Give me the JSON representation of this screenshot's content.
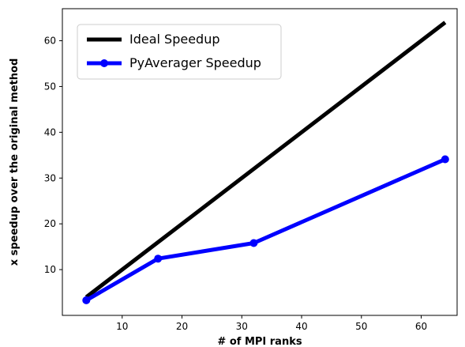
{
  "chart_data": {
    "type": "line",
    "title": "",
    "xlabel": "# of MPI ranks",
    "ylabel": "x speedup over the original method",
    "xlim": [
      0.0,
      66.0
    ],
    "ylim": [
      0.0,
      67.0
    ],
    "xticks": [
      10,
      20,
      30,
      40,
      50,
      60
    ],
    "yticks": [
      10,
      20,
      30,
      40,
      50,
      60
    ],
    "grid": false,
    "legend_position": "top-left",
    "series": [
      {
        "name": "Ideal Speedup",
        "color": "#000000",
        "marker": "none",
        "x": [
          4,
          64
        ],
        "y": [
          4,
          64
        ]
      },
      {
        "name": "PyAverager Speedup",
        "color": "#0000ff",
        "marker": "circle",
        "x": [
          4,
          16,
          32,
          64
        ],
        "y": [
          3.3,
          12.4,
          15.8,
          34.1
        ]
      }
    ]
  }
}
